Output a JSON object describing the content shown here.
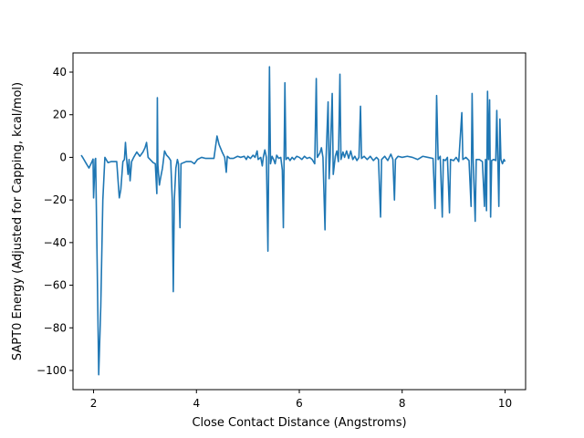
{
  "chart_data": {
    "type": "line",
    "title": "",
    "xlabel": "Close Contact Distance (Angstroms)",
    "ylabel": "SAPT0 Energy (Adjusted for Capping, kcal/mol)",
    "xlim": [
      1.6,
      10.4
    ],
    "ylim": [
      -109,
      49
    ],
    "x_ticks": [
      2,
      4,
      6,
      8,
      10
    ],
    "y_ticks": [
      -100,
      -80,
      -60,
      -40,
      -20,
      0,
      20,
      40
    ],
    "grid": false,
    "legend": "none",
    "series": [
      {
        "color": "#1f77b4",
        "points": [
          [
            1.76,
            1.0
          ],
          [
            1.8,
            -0.5
          ],
          [
            1.86,
            -3.0
          ],
          [
            1.91,
            -5.0
          ],
          [
            1.96,
            -2.5
          ],
          [
            1.99,
            -0.8
          ],
          [
            2.0,
            -19.0
          ],
          [
            2.03,
            -1.0
          ],
          [
            2.04,
            -0.5
          ],
          [
            2.07,
            -50.0
          ],
          [
            2.1,
            -102.0
          ],
          [
            2.14,
            -70.0
          ],
          [
            2.18,
            -20.0
          ],
          [
            2.22,
            0.0
          ],
          [
            2.28,
            -2.5
          ],
          [
            2.34,
            -2.0
          ],
          [
            2.4,
            -2.0
          ],
          [
            2.45,
            -2.0
          ],
          [
            2.5,
            -19.0
          ],
          [
            2.53,
            -15.0
          ],
          [
            2.57,
            -2.0
          ],
          [
            2.6,
            -1.0
          ],
          [
            2.62,
            7.0
          ],
          [
            2.64,
            0.0
          ],
          [
            2.67,
            -8.0
          ],
          [
            2.69,
            -1.0
          ],
          [
            2.71,
            -11.0
          ],
          [
            2.74,
            -2.0
          ],
          [
            2.78,
            0.0
          ],
          [
            2.84,
            2.5
          ],
          [
            2.9,
            0.5
          ],
          [
            2.96,
            2.5
          ],
          [
            3.0,
            4.5
          ],
          [
            3.03,
            7.0
          ],
          [
            3.06,
            0.0
          ],
          [
            3.1,
            -1.0
          ],
          [
            3.16,
            -2.5
          ],
          [
            3.2,
            -3.0
          ],
          [
            3.23,
            -17.0
          ],
          [
            3.24,
            28.0
          ],
          [
            3.25,
            -3.5
          ],
          [
            3.28,
            -13.0
          ],
          [
            3.3,
            -10.0
          ],
          [
            3.34,
            -5.0
          ],
          [
            3.38,
            3.0
          ],
          [
            3.42,
            1.0
          ],
          [
            3.46,
            0.0
          ],
          [
            3.5,
            -1.5
          ],
          [
            3.53,
            -20.0
          ],
          [
            3.55,
            -63.0
          ],
          [
            3.57,
            -20.0
          ],
          [
            3.6,
            -5.0
          ],
          [
            3.63,
            -1.0
          ],
          [
            3.65,
            -3.0
          ],
          [
            3.68,
            -33.0
          ],
          [
            3.7,
            -3.0
          ],
          [
            3.8,
            -2.0
          ],
          [
            3.9,
            -2.0
          ],
          [
            3.96,
            -3.0
          ],
          [
            4.02,
            -1.0
          ],
          [
            4.1,
            0.0
          ],
          [
            4.18,
            -0.5
          ],
          [
            4.26,
            -0.5
          ],
          [
            4.34,
            -0.5
          ],
          [
            4.4,
            10.0
          ],
          [
            4.44,
            6.0
          ],
          [
            4.5,
            2.5
          ],
          [
            4.55,
            0.0
          ],
          [
            4.58,
            -7.0
          ],
          [
            4.6,
            0.5
          ],
          [
            4.65,
            -0.5
          ],
          [
            4.72,
            -0.5
          ],
          [
            4.8,
            0.5
          ],
          [
            4.86,
            0.0
          ],
          [
            4.93,
            0.5
          ],
          [
            4.97,
            -1.0
          ],
          [
            5.0,
            0.5
          ],
          [
            5.05,
            -0.5
          ],
          [
            5.1,
            1.0
          ],
          [
            5.14,
            0.0
          ],
          [
            5.18,
            3.0
          ],
          [
            5.2,
            -1.0
          ],
          [
            5.25,
            0.0
          ],
          [
            5.28,
            -4.0
          ],
          [
            5.3,
            0.0
          ],
          [
            5.33,
            3.5
          ],
          [
            5.36,
            0.0
          ],
          [
            5.39,
            -44.0
          ],
          [
            5.42,
            42.5
          ],
          [
            5.44,
            -3.0
          ],
          [
            5.47,
            0.5
          ],
          [
            5.5,
            -1.0
          ],
          [
            5.53,
            -3.0
          ],
          [
            5.56,
            1.0
          ],
          [
            5.6,
            -0.5
          ],
          [
            5.64,
            0.0
          ],
          [
            5.67,
            -6.0
          ],
          [
            5.69,
            -33.0
          ],
          [
            5.72,
            35.0
          ],
          [
            5.74,
            -1.0
          ],
          [
            5.78,
            0.0
          ],
          [
            5.82,
            -1.5
          ],
          [
            5.86,
            0.0
          ],
          [
            5.9,
            -1.0
          ],
          [
            5.95,
            0.5
          ],
          [
            6.0,
            0.0
          ],
          [
            6.05,
            -1.0
          ],
          [
            6.1,
            0.5
          ],
          [
            6.15,
            -0.5
          ],
          [
            6.2,
            0.0
          ],
          [
            6.25,
            -1.0
          ],
          [
            6.3,
            -3.0
          ],
          [
            6.33,
            37.0
          ],
          [
            6.35,
            0.0
          ],
          [
            6.4,
            2.0
          ],
          [
            6.43,
            4.5
          ],
          [
            6.46,
            0.0
          ],
          [
            6.5,
            -34.0
          ],
          [
            6.52,
            -1.0
          ],
          [
            6.56,
            26.0
          ],
          [
            6.58,
            -10.0
          ],
          [
            6.6,
            0.0
          ],
          [
            6.64,
            30.0
          ],
          [
            6.66,
            -8.0
          ],
          [
            6.7,
            0.5
          ],
          [
            6.73,
            3.0
          ],
          [
            6.76,
            -2.0
          ],
          [
            6.79,
            39.0
          ],
          [
            6.81,
            -1.0
          ],
          [
            6.85,
            2.5
          ],
          [
            6.88,
            0.0
          ],
          [
            6.92,
            3.0
          ],
          [
            6.96,
            -0.5
          ],
          [
            7.0,
            3.0
          ],
          [
            7.04,
            -1.0
          ],
          [
            7.08,
            0.5
          ],
          [
            7.12,
            -1.5
          ],
          [
            7.16,
            0.0
          ],
          [
            7.19,
            24.0
          ],
          [
            7.21,
            -0.5
          ],
          [
            7.26,
            0.5
          ],
          [
            7.32,
            -1.0
          ],
          [
            7.38,
            0.5
          ],
          [
            7.44,
            -1.5
          ],
          [
            7.5,
            0.0
          ],
          [
            7.54,
            -1.0
          ],
          [
            7.58,
            -28.0
          ],
          [
            7.6,
            -1.0
          ],
          [
            7.66,
            0.5
          ],
          [
            7.72,
            -1.5
          ],
          [
            7.78,
            1.5
          ],
          [
            7.82,
            -1.0
          ],
          [
            7.85,
            -20.0
          ],
          [
            7.87,
            -1.0
          ],
          [
            7.92,
            0.5
          ],
          [
            8.0,
            0.0
          ],
          [
            8.1,
            0.5
          ],
          [
            8.2,
            0.0
          ],
          [
            8.3,
            -1.0
          ],
          [
            8.4,
            0.5
          ],
          [
            8.5,
            0.0
          ],
          [
            8.6,
            -0.5
          ],
          [
            8.64,
            -24.0
          ],
          [
            8.67,
            29.0
          ],
          [
            8.7,
            -1.0
          ],
          [
            8.74,
            0.5
          ],
          [
            8.78,
            -28.0
          ],
          [
            8.8,
            -1.0
          ],
          [
            8.84,
            -1.5
          ],
          [
            8.88,
            0.0
          ],
          [
            8.92,
            -26.0
          ],
          [
            8.94,
            -1.0
          ],
          [
            9.0,
            -1.5
          ],
          [
            9.05,
            0.0
          ],
          [
            9.1,
            -2.0
          ],
          [
            9.16,
            21.0
          ],
          [
            9.18,
            -1.0
          ],
          [
            9.24,
            0.0
          ],
          [
            9.3,
            -1.5
          ],
          [
            9.34,
            -23.0
          ],
          [
            9.36,
            30.0
          ],
          [
            9.38,
            -1.0
          ],
          [
            9.42,
            -30.0
          ],
          [
            9.44,
            -1.0
          ],
          [
            9.5,
            -1.0
          ],
          [
            9.56,
            -2.0
          ],
          [
            9.6,
            -23.0
          ],
          [
            9.62,
            -1.0
          ],
          [
            9.64,
            -25.0
          ],
          [
            9.66,
            31.0
          ],
          [
            9.68,
            -1.0
          ],
          [
            9.7,
            27.0
          ],
          [
            9.72,
            -28.0
          ],
          [
            9.74,
            -1.5
          ],
          [
            9.78,
            -1.0
          ],
          [
            9.82,
            -1.5
          ],
          [
            9.84,
            22.0
          ],
          [
            9.86,
            -1.0
          ],
          [
            9.88,
            -23.0
          ],
          [
            9.9,
            18.0
          ],
          [
            9.92,
            -1.0
          ],
          [
            9.95,
            -3.0
          ],
          [
            9.98,
            -1.0
          ],
          [
            10.0,
            -2.0
          ]
        ]
      }
    ]
  }
}
